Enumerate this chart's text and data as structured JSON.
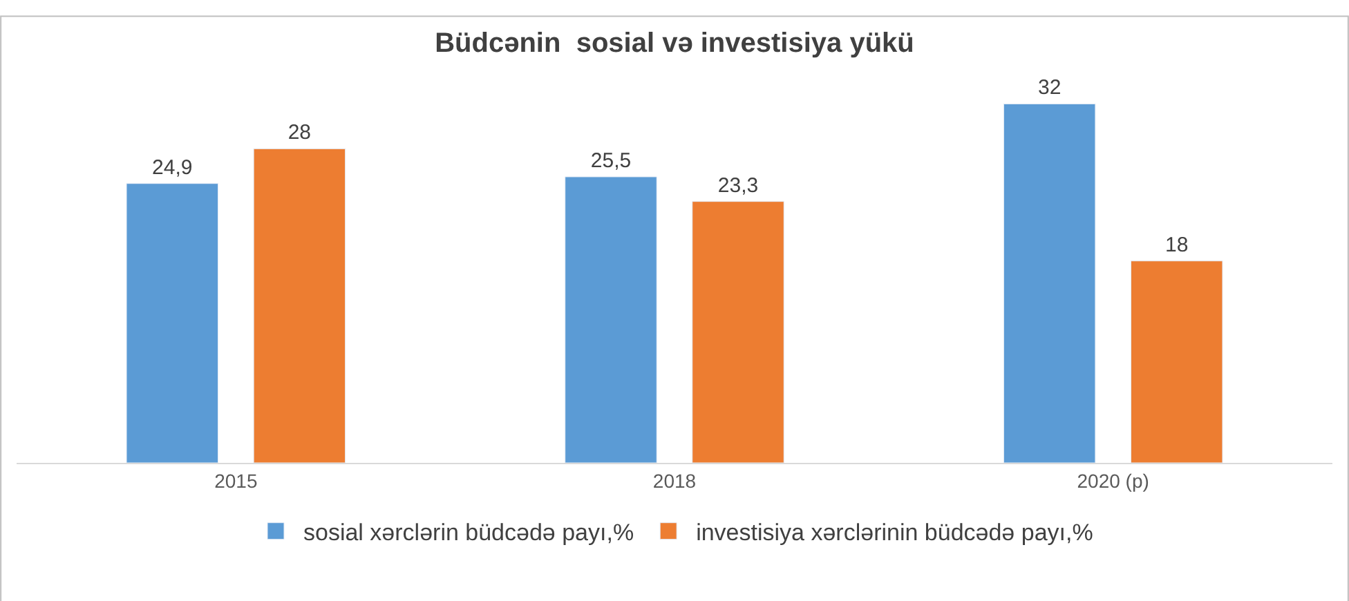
{
  "chart_data": {
    "type": "bar",
    "title": "Büdcənin  sosial və investisiya yükü",
    "categories": [
      "2015",
      "2018",
      "2020 (p)"
    ],
    "series": [
      {
        "name": "sosial xərclərin büdcədə payı,%",
        "color": "#5b9bd5",
        "values": [
          24.9,
          25.5,
          32
        ],
        "value_labels": [
          "24,9",
          "25,5",
          "32"
        ]
      },
      {
        "name": "investisiya xərclərinin büdcədə payı,%",
        "color": "#ed7d31",
        "values": [
          28,
          23.3,
          18
        ],
        "value_labels": [
          "28",
          "23,3",
          "18"
        ]
      }
    ],
    "legend": "bottom"
  }
}
